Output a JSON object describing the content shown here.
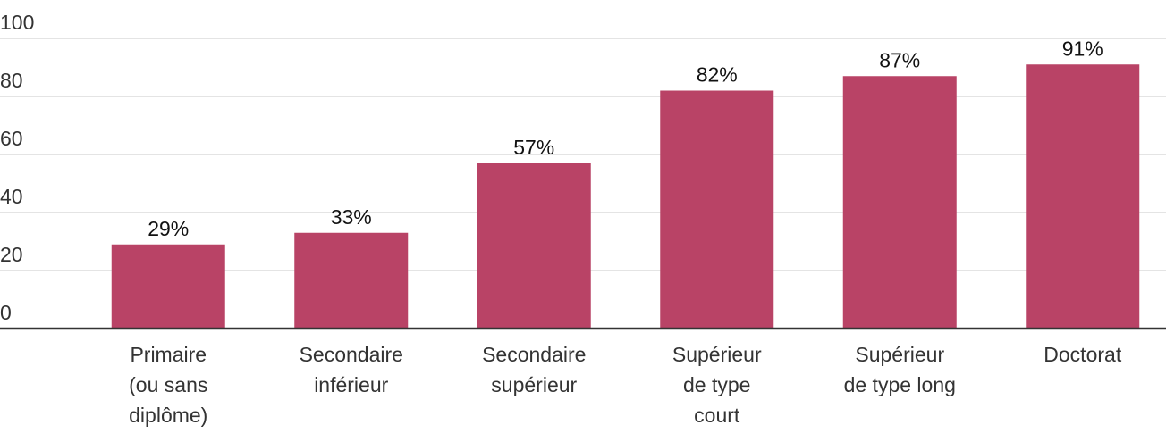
{
  "chart_data": {
    "type": "bar",
    "categories": [
      "Primaire\n(ou sans\ndiplôme)",
      "Secondaire\ninférieur",
      "Secondaire\nsupérieur",
      "Supérieur\nde type\ncourt",
      "Supérieur\nde type long",
      "Doctorat"
    ],
    "values": [
      29,
      33,
      57,
      82,
      87,
      91
    ],
    "value_labels": [
      "29%",
      "33%",
      "57%",
      "82%",
      "87%",
      "91%"
    ],
    "color": "#b94366",
    "ylim": [
      0,
      100
    ],
    "yticks": [
      0,
      20,
      40,
      60,
      80,
      100
    ],
    "grid": true
  }
}
